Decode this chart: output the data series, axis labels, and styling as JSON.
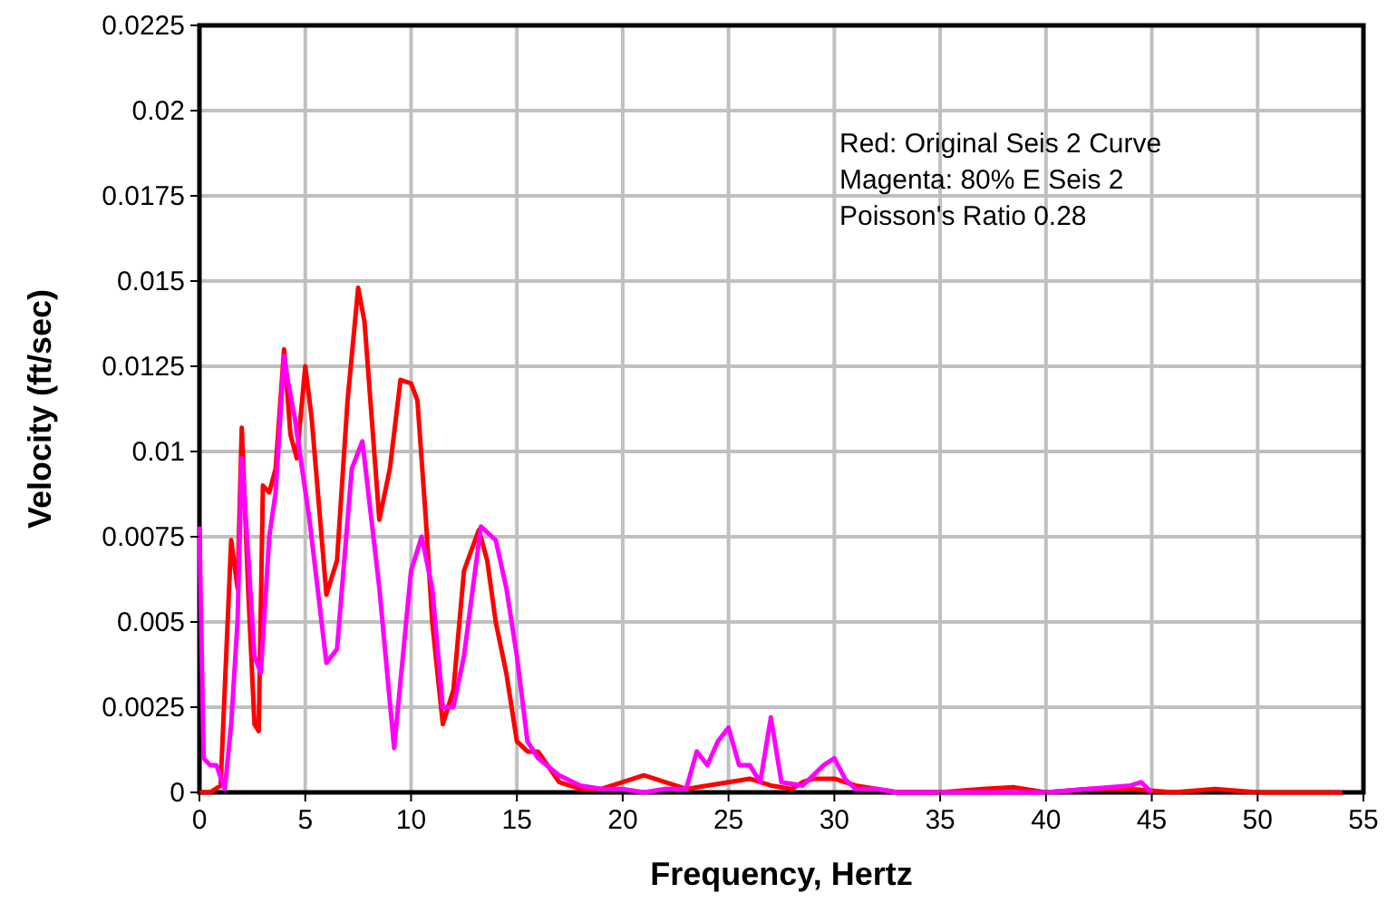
{
  "chart_data": {
    "type": "line",
    "xlabel": "Frequency, Hertz",
    "ylabel": "Velocity (ft/sec)",
    "annotations": [
      "Red: Original Seis 2 Curve",
      "Magenta: 80% E Seis 2",
      "Poisson's Ratio 0.28"
    ],
    "xlim": [
      0,
      55
    ],
    "xticks": [
      0,
      5,
      10,
      15,
      20,
      25,
      30,
      35,
      40,
      45,
      50,
      55
    ],
    "ylim": [
      0,
      0.0225
    ],
    "yticks": [
      0,
      0.0025,
      0.005,
      0.0075,
      0.01,
      0.0125,
      0.015,
      0.0175,
      0.02,
      0.0225
    ],
    "grid": true,
    "marker": "none",
    "line_style": "solid",
    "series": [
      {
        "color": "#ff0000",
        "x": [
          0,
          0.5,
          1,
          1.5,
          1.8,
          2,
          2.3,
          2.6,
          2.8,
          3,
          3.3,
          3.6,
          4,
          4.3,
          4.6,
          5,
          5.3,
          6,
          6.5,
          7,
          7.5,
          7.8,
          8.5,
          9,
          9.5,
          10,
          10.3,
          10.7,
          11,
          11.5,
          12,
          12.5,
          13.2,
          13.6,
          14,
          14.5,
          15,
          15.5,
          16,
          17,
          18,
          19,
          20,
          21,
          22,
          23,
          24,
          25,
          26,
          27,
          28,
          28.5,
          29,
          30,
          31,
          32,
          33,
          35,
          37,
          38.5,
          40,
          42,
          44,
          46,
          48,
          50,
          52,
          54
        ],
        "values": [
          0,
          0,
          0.0002,
          0.0074,
          0.006,
          0.0107,
          0.006,
          0.002,
          0.0018,
          0.009,
          0.0088,
          0.0095,
          0.013,
          0.0105,
          0.0098,
          0.0125,
          0.011,
          0.0058,
          0.0068,
          0.0115,
          0.0148,
          0.0138,
          0.008,
          0.0095,
          0.0121,
          0.012,
          0.0115,
          0.008,
          0.005,
          0.002,
          0.003,
          0.0065,
          0.0077,
          0.0068,
          0.005,
          0.0035,
          0.0015,
          0.0012,
          0.0012,
          0.0003,
          0.0001,
          0.0001,
          0.0003,
          0.0005,
          0.0003,
          0.0001,
          0.0002,
          0.0003,
          0.0004,
          0.0002,
          0.0001,
          0.0003,
          0.0004,
          0.0004,
          0.0002,
          0.0001,
          0,
          0,
          0.0001,
          0.00015,
          0,
          0.0001,
          0.0001,
          0,
          0.0001,
          0,
          0,
          0
        ]
      },
      {
        "color": "#ff00ff",
        "x": [
          0,
          0.2,
          0.5,
          0.8,
          1.2,
          1.5,
          1.8,
          2,
          2.3,
          2.6,
          2.9,
          3.3,
          3.6,
          4,
          4.2,
          4.5,
          5.2,
          6,
          6.5,
          7.2,
          7.7,
          8.5,
          9.2,
          10,
          10.5,
          11,
          11.5,
          12,
          12.5,
          13.3,
          14,
          14.5,
          15,
          15.5,
          16,
          17,
          18,
          19,
          20,
          21,
          22,
          23,
          23.5,
          24,
          24.5,
          25,
          25.5,
          26,
          26.5,
          27,
          27.5,
          28.5,
          29,
          29.5,
          30,
          30.5,
          31,
          32,
          33,
          35,
          40,
          44,
          44.5,
          45
        ],
        "values": [
          0.0078,
          0.001,
          0.0008,
          0.0008,
          0.0001,
          0.002,
          0.005,
          0.0098,
          0.007,
          0.004,
          0.0035,
          0.0075,
          0.0088,
          0.0128,
          0.012,
          0.011,
          0.008,
          0.0038,
          0.0042,
          0.0095,
          0.0103,
          0.006,
          0.0013,
          0.0065,
          0.0075,
          0.006,
          0.0025,
          0.0025,
          0.004,
          0.0078,
          0.0074,
          0.006,
          0.004,
          0.0015,
          0.001,
          0.0005,
          0.0002,
          0.0001,
          0.0001,
          0,
          0.0001,
          0.0001,
          0.0012,
          0.0008,
          0.0015,
          0.0019,
          0.0008,
          0.0008,
          0.0003,
          0.0022,
          0.0003,
          0.0002,
          0.0005,
          0.0008,
          0.001,
          0.0004,
          0.0001,
          0.0001,
          0,
          0,
          0,
          0.0002,
          0.0003,
          0
        ]
      }
    ]
  }
}
